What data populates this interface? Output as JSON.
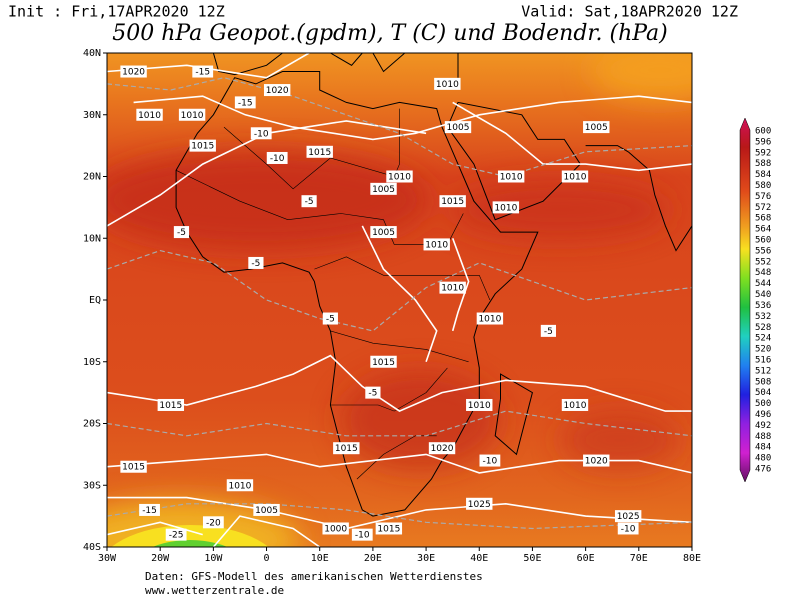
{
  "header": {
    "init": "Init : Fri,17APR2020 12Z",
    "valid": "Valid: Sat,18APR2020 12Z",
    "title": "500 hPa Geopot.(gpdm), T (C) und Bodendr. (hPa)"
  },
  "map": {
    "lat_labels": [
      "40N",
      "30N",
      "20N",
      "10N",
      "EQ",
      "10S",
      "20S",
      "30S",
      "40S"
    ],
    "lon_labels": [
      "30W",
      "20W",
      "10W",
      "0",
      "10E",
      "20E",
      "30E",
      "40E",
      "50E",
      "60E",
      "70E",
      "80E"
    ],
    "contour_labels": [
      "1020",
      "1010",
      "1010",
      "1015",
      "1020",
      "1010",
      "1005",
      "1015",
      "1005",
      "1010",
      "1015",
      "1005",
      "1010",
      "1010",
      "1010",
      "1005",
      "1010",
      "1010",
      "1010",
      "1015",
      "1015",
      "1010",
      "1010",
      "1015",
      "1020",
      "1015",
      "1020",
      "1025",
      "1025",
      "1010",
      "1005",
      "1000",
      "1015",
      "-15",
      "-15",
      "-10",
      "-10",
      "-5",
      "-5",
      "-5",
      "-5",
      "-5",
      "-10",
      "-10",
      "-20",
      "-25",
      "-15",
      "-10",
      "-5"
    ]
  },
  "colorbar": {
    "labels": [
      "600",
      "596",
      "592",
      "588",
      "584",
      "580",
      "576",
      "572",
      "568",
      "564",
      "560",
      "556",
      "552",
      "548",
      "544",
      "540",
      "536",
      "532",
      "528",
      "524",
      "520",
      "516",
      "512",
      "508",
      "504",
      "500",
      "496",
      "492",
      "488",
      "484",
      "480",
      "476"
    ]
  },
  "footer": {
    "source": "Daten: GFS-Modell des amerikanischen Wetterdienstes",
    "url": "www.wetterzentrale.de"
  }
}
